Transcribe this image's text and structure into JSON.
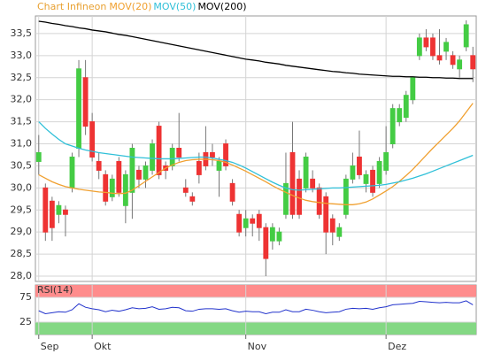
{
  "chart_data": [
    {
      "type": "candlestick",
      "title": "Chart Infineon",
      "title_color": "#e8a030",
      "up_color": "#44cc44",
      "down_color": "#ee3333",
      "categories": [
        "Sep",
        null,
        null,
        null,
        null,
        null,
        null,
        null,
        "Okt",
        null,
        null,
        null,
        null,
        null,
        null,
        null,
        null,
        null,
        null,
        null,
        null,
        null,
        null,
        null,
        null,
        null,
        null,
        null,
        null,
        null,
        null,
        "Nov",
        null,
        null,
        null,
        null,
        null,
        null,
        null,
        null,
        null,
        null,
        null,
        null,
        null,
        null,
        null,
        null,
        null,
        null,
        null,
        null,
        "Dez",
        null,
        null,
        null,
        null,
        null,
        null,
        null,
        null,
        null,
        null,
        null,
        null,
        null
      ],
      "ohlc": [
        [
          30.6,
          31.2,
          30.3,
          30.8
        ],
        [
          30.0,
          30.1,
          28.8,
          29.0
        ],
        [
          29.7,
          29.8,
          28.8,
          29.1
        ],
        [
          29.4,
          29.7,
          29.2,
          29.6
        ],
        [
          29.5,
          29.6,
          28.9,
          29.4
        ],
        [
          30.0,
          30.8,
          29.9,
          30.7
        ],
        [
          30.9,
          32.9,
          30.7,
          32.7
        ],
        [
          32.5,
          32.9,
          31.2,
          31.4
        ],
        [
          31.5,
          31.7,
          30.6,
          30.7
        ],
        [
          30.6,
          30.8,
          30.2,
          30.4
        ],
        [
          30.3,
          30.4,
          29.6,
          29.7
        ],
        [
          29.8,
          30.3,
          29.7,
          30.2
        ],
        [
          30.6,
          30.7,
          29.8,
          29.9
        ],
        [
          29.6,
          30.4,
          29.2,
          30.3
        ],
        [
          29.9,
          31.0,
          29.3,
          30.9
        ],
        [
          30.4,
          30.5,
          30.0,
          30.2
        ],
        [
          30.2,
          30.6,
          30.0,
          30.5
        ],
        [
          30.4,
          31.1,
          30.3,
          31.0
        ],
        [
          31.4,
          31.5,
          30.2,
          30.3
        ],
        [
          30.5,
          30.6,
          30.2,
          30.4
        ],
        [
          30.5,
          31.0,
          30.4,
          30.9
        ],
        [
          30.9,
          31.7,
          30.6,
          30.7
        ],
        [
          30.0,
          30.2,
          29.8,
          29.9
        ],
        [
          29.8,
          29.9,
          29.6,
          29.7
        ],
        [
          30.6,
          30.8,
          30.1,
          30.3
        ],
        [
          30.8,
          31.4,
          30.4,
          30.5
        ],
        [
          30.8,
          31.0,
          30.5,
          30.7
        ],
        [
          30.4,
          30.7,
          29.8,
          30.6
        ],
        [
          31.0,
          31.1,
          30.4,
          30.5
        ],
        [
          30.1,
          30.2,
          29.6,
          29.7
        ],
        [
          29.4,
          29.5,
          28.9,
          29.0
        ],
        [
          29.1,
          29.5,
          28.9,
          29.3
        ],
        [
          29.3,
          29.4,
          28.9,
          29.2
        ],
        [
          29.4,
          29.5,
          28.8,
          29.1
        ],
        [
          29.1,
          29.2,
          28.0,
          28.4
        ],
        [
          28.8,
          29.2,
          28.6,
          29.1
        ],
        [
          28.8,
          29.1,
          28.7,
          29.0
        ],
        [
          29.4,
          30.8,
          29.3,
          30.1
        ],
        [
          30.8,
          31.5,
          29.3,
          29.4
        ],
        [
          30.2,
          30.4,
          29.3,
          29.4
        ],
        [
          30.0,
          30.8,
          29.9,
          30.7
        ],
        [
          30.2,
          30.4,
          29.9,
          30.0
        ],
        [
          30.0,
          30.1,
          29.3,
          29.4
        ],
        [
          29.8,
          29.9,
          28.5,
          29.0
        ],
        [
          29.3,
          29.4,
          28.7,
          29.0
        ],
        [
          28.9,
          29.2,
          28.8,
          29.1
        ],
        [
          29.4,
          30.3,
          29.3,
          30.2
        ],
        [
          30.2,
          30.8,
          30.1,
          30.5
        ],
        [
          30.7,
          31.3,
          30.2,
          30.3
        ],
        [
          30.1,
          30.4,
          29.9,
          30.3
        ],
        [
          30.4,
          30.5,
          29.8,
          29.9
        ],
        [
          30.1,
          30.7,
          30.0,
          30.6
        ],
        [
          30.4,
          31.4,
          30.3,
          30.8
        ],
        [
          31.0,
          31.9,
          30.9,
          31.8
        ],
        [
          31.5,
          31.9,
          31.4,
          31.8
        ],
        [
          31.6,
          32.2,
          31.5,
          32.1
        ],
        [
          32.0,
          32.5,
          31.9,
          32.5
        ],
        [
          33.0,
          33.5,
          32.9,
          33.4
        ],
        [
          33.4,
          33.6,
          33.1,
          33.2
        ],
        [
          33.4,
          33.5,
          32.9,
          33.0
        ],
        [
          33.0,
          33.6,
          32.8,
          32.9
        ],
        [
          33.1,
          33.4,
          32.9,
          33.3
        ],
        [
          33.0,
          33.1,
          32.7,
          32.8
        ],
        [
          32.7,
          33.0,
          32.5,
          32.9
        ],
        [
          33.2,
          33.8,
          33.1,
          33.7
        ],
        [
          33.0,
          33.2,
          32.4,
          32.7
        ]
      ],
      "series": [
        {
          "name": "MOV(20)",
          "color": "#f0a030",
          "values": [
            30.3,
            30.22,
            30.14,
            30.08,
            30.03,
            30.0,
            29.97,
            29.95,
            29.93,
            29.91,
            29.9,
            29.88,
            29.87,
            29.88,
            29.95,
            30.05,
            30.15,
            30.25,
            30.35,
            30.45,
            30.52,
            30.58,
            30.62,
            30.64,
            30.65,
            30.65,
            30.64,
            30.62,
            30.58,
            30.52,
            30.45,
            30.38,
            30.3,
            30.22,
            30.14,
            30.05,
            29.97,
            29.9,
            29.83,
            29.77,
            29.72,
            29.69,
            29.67,
            29.65,
            29.64,
            29.63,
            29.62,
            29.62,
            29.64,
            29.68,
            29.75,
            29.84,
            29.93,
            30.03,
            30.15,
            30.28,
            30.42,
            30.58,
            30.74,
            30.9,
            31.05,
            31.2,
            31.35,
            31.52,
            31.72,
            31.92
          ]
        },
        {
          "name": "MOV(50)",
          "color": "#30c0d8",
          "values": [
            31.5,
            31.35,
            31.22,
            31.1,
            31.0,
            30.95,
            30.9,
            30.86,
            30.83,
            30.8,
            30.78,
            30.76,
            30.74,
            30.72,
            30.7,
            30.69,
            30.68,
            30.67,
            30.66,
            30.66,
            30.66,
            30.67,
            30.68,
            30.69,
            30.7,
            30.7,
            30.68,
            30.65,
            30.62,
            30.58,
            30.52,
            30.45,
            30.37,
            30.29,
            30.21,
            30.13,
            30.06,
            30.0,
            29.96,
            29.95,
            29.96,
            29.97,
            29.98,
            29.99,
            30.0,
            30.0,
            30.01,
            30.02,
            30.03,
            30.04,
            30.05,
            30.06,
            30.08,
            30.11,
            30.14,
            30.18,
            30.22,
            30.27,
            30.32,
            30.38,
            30.44,
            30.5,
            30.56,
            30.62,
            30.68,
            30.74
          ]
        },
        {
          "name": "MOV(200)",
          "color": "#000000",
          "values": [
            33.78,
            33.76,
            33.73,
            33.71,
            33.68,
            33.66,
            33.63,
            33.61,
            33.58,
            33.56,
            33.54,
            33.51,
            33.48,
            33.46,
            33.43,
            33.4,
            33.37,
            33.34,
            33.31,
            33.28,
            33.25,
            33.22,
            33.19,
            33.16,
            33.13,
            33.1,
            33.07,
            33.04,
            33.01,
            32.98,
            32.95,
            32.92,
            32.9,
            32.88,
            32.85,
            32.83,
            32.81,
            32.78,
            32.76,
            32.74,
            32.72,
            32.7,
            32.68,
            32.66,
            32.64,
            32.63,
            32.61,
            32.6,
            32.58,
            32.57,
            32.56,
            32.55,
            32.54,
            32.53,
            32.53,
            32.52,
            32.52,
            32.51,
            32.51,
            32.5,
            32.5,
            32.49,
            32.49,
            32.48,
            32.48,
            32.48
          ]
        }
      ],
      "ylim": [
        27.88,
        33.9
      ],
      "yticks": [
        {
          "value": 28.0,
          "label": "28,0"
        },
        {
          "value": 28.5,
          "label": "28,5"
        },
        {
          "value": 29.0,
          "label": "29,0"
        },
        {
          "value": 29.5,
          "label": "29,5"
        },
        {
          "value": 30.0,
          "label": "30,0"
        },
        {
          "value": 30.5,
          "label": "30,5"
        },
        {
          "value": 31.0,
          "label": "31,0"
        },
        {
          "value": 31.5,
          "label": "31,5"
        },
        {
          "value": 32.0,
          "label": "32,0"
        },
        {
          "value": 32.5,
          "label": "32,5"
        },
        {
          "value": 33.0,
          "label": "33,0"
        },
        {
          "value": 33.5,
          "label": "33,5"
        }
      ],
      "grid": true
    },
    {
      "type": "line",
      "title": "RSI(14)",
      "color": "#2233cc",
      "values": [
        48,
        42,
        44,
        46,
        45,
        50,
        62,
        55,
        52,
        50,
        46,
        49,
        47,
        50,
        54,
        52,
        53,
        56,
        51,
        52,
        55,
        54,
        48,
        47,
        51,
        52,
        52,
        51,
        52,
        48,
        45,
        47,
        46,
        46,
        42,
        45,
        45,
        50,
        46,
        46,
        51,
        49,
        46,
        44,
        45,
        46,
        51,
        53,
        52,
        53,
        51,
        54,
        56,
        60,
        61,
        62,
        63,
        67,
        66,
        65,
        64,
        65,
        64,
        64,
        68,
        60
      ],
      "ylim": [
        0,
        100
      ],
      "yticks": [
        25,
        75
      ],
      "upper_band_color": "#ff8c8c",
      "lower_band_color": "#84d884",
      "grid": true
    }
  ]
}
